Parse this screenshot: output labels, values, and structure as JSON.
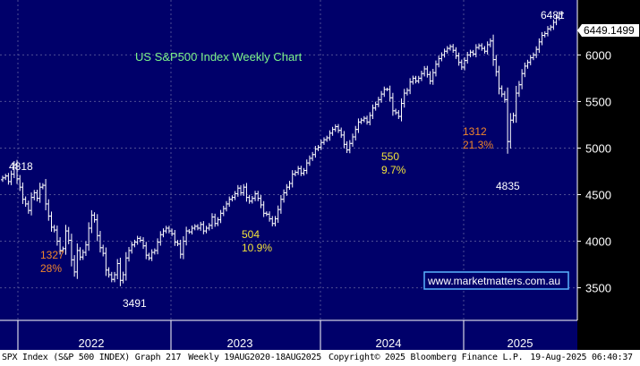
{
  "chart_data": {
    "type": "ohlc",
    "title": "US S&P500 Index Weekly Chart",
    "frequency": "Weekly",
    "x_ticks": [
      "2022",
      "2023",
      "2024",
      "2025"
    ],
    "y_ticks": [
      3500,
      4000,
      4500,
      5000,
      5500,
      6000
    ],
    "ylim": [
      3150,
      6590
    ],
    "grid": true,
    "last_value_label": "6449.1499",
    "series": [
      {
        "values": [
          4680,
          4700,
          4640,
          4720,
          4818,
          4670,
          4580,
          4450,
          4400,
          4330,
          4470,
          4520,
          4460,
          4580,
          4600,
          4400,
          4270,
          4150,
          4120,
          4000,
          3900,
          3920,
          4110,
          4010,
          3800,
          3670,
          3900,
          3830,
          3880,
          3960,
          4140,
          4280,
          4230,
          4060,
          3930,
          3870,
          3690,
          3640,
          3590,
          3640,
          3760,
          3580,
          3640,
          3820,
          3900,
          3960,
          3990,
          4030,
          4010,
          3950,
          3850,
          3820,
          3880,
          3900,
          3990,
          4070,
          4110,
          4140,
          4110,
          4080,
          3990,
          3970,
          3860,
          4000,
          4110,
          4100,
          4140,
          4160,
          4140,
          4180,
          4110,
          4140,
          4170,
          4260,
          4190,
          4230,
          4300,
          4350,
          4400,
          4450,
          4470,
          4510,
          4570,
          4520,
          4580,
          4470,
          4430,
          4460,
          4510,
          4460,
          4390,
          4300,
          4290,
          4240,
          4190,
          4240,
          4340,
          4450,
          4520,
          4580,
          4620,
          4720,
          4740,
          4780,
          4730,
          4760,
          4840,
          4890,
          4930,
          4990,
          5010,
          5060,
          5090,
          5110,
          5160,
          5200,
          5230,
          5190,
          5140,
          5040,
          4980,
          5050,
          5120,
          5200,
          5280,
          5300,
          5320,
          5280,
          5350,
          5430,
          5470,
          5520,
          5580,
          5630,
          5630,
          5540,
          5400,
          5380,
          5340,
          5480,
          5590,
          5620,
          5710,
          5750,
          5720,
          5750,
          5800,
          5850,
          5790,
          5720,
          5810,
          5900,
          5960,
          6000,
          6040,
          6070,
          6090,
          6050,
          5990,
          5920,
          5870,
          5940,
          6000,
          6030,
          6010,
          6080,
          6100,
          6070,
          6040,
          6110,
          6150,
          5950,
          5820,
          5640,
          5580,
          5520,
          5070,
          5300,
          5350,
          5590,
          5680,
          5800,
          5880,
          5920,
          5970,
          6000,
          6060,
          6140,
          6210,
          6230,
          6280,
          6300,
          6350,
          6400,
          6440,
          6449.1499
        ]
      }
    ],
    "annotations": [
      {
        "text": "4818",
        "color": "#ffffff"
      },
      {
        "text": "1327",
        "color": "#f0852b"
      },
      {
        "text": "28%",
        "color": "#f0852b"
      },
      {
        "text": "3491",
        "color": "#ffffff"
      },
      {
        "text": "504",
        "color": "#f2e23a"
      },
      {
        "text": "10.9%",
        "color": "#f2e23a"
      },
      {
        "text": "550",
        "color": "#f2e23a"
      },
      {
        "text": "9.7%",
        "color": "#f2e23a"
      },
      {
        "text": "1312",
        "color": "#f0852b"
      },
      {
        "text": "21.3%",
        "color": "#f0852b"
      },
      {
        "text": "4835",
        "color": "#ffffff"
      },
      {
        "text": "6481",
        "color": "#ffffff"
      }
    ],
    "watermark": "www.marketmatters.com.au",
    "colors": {
      "background": "#00006a",
      "grid": "#4e4e94",
      "price_bars": "#ffffff",
      "title": "#7df48a",
      "watermark_border": "#5ab4ff"
    }
  },
  "footer": {
    "security": "SPX Index (S&P 500 INDEX) Graph 217",
    "range": "Weekly 19AUG2020-18AUG2025",
    "copyright": "Copyright© 2025 Bloomberg Finance L.P.",
    "timestamp": "19-Aug-2025 06:40:37"
  }
}
